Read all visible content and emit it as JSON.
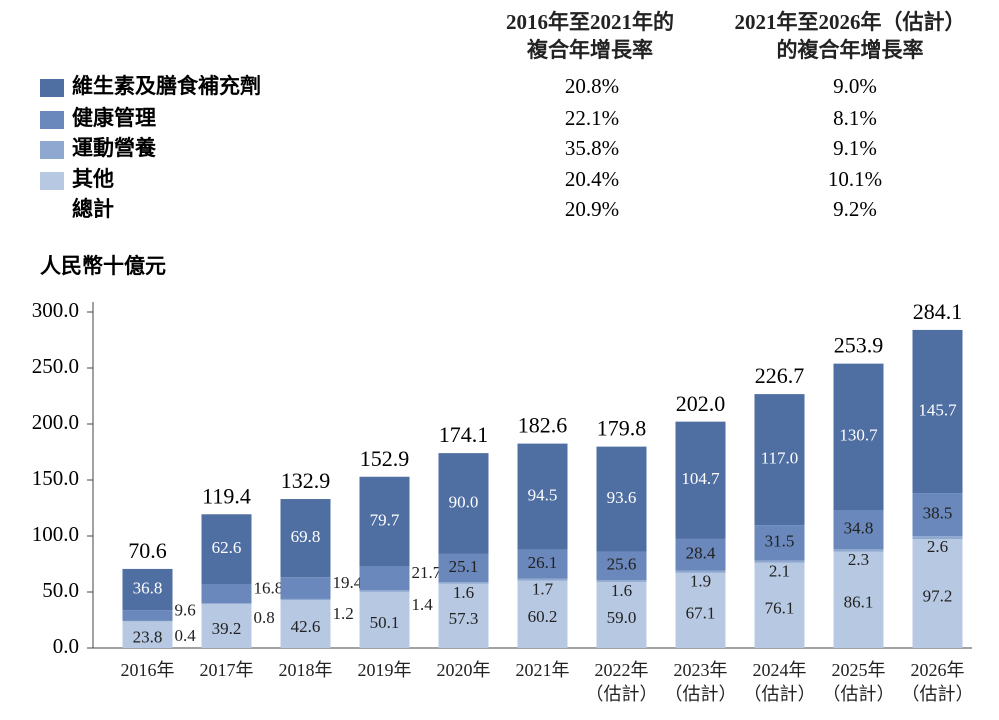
{
  "chart_data": {
    "type": "stacked_bar",
    "cagr_headers": [
      "2016年至2021年的\n複合年增長率",
      "2021年至2026年（估計）\n的複合年增長率"
    ],
    "y_label": "人民幣十億元",
    "categories": [
      "2016年",
      "2017年",
      "2018年",
      "2019年",
      "2020年",
      "2021年",
      "2022年\n（估計）",
      "2023年\n（估計）",
      "2024年\n（估計）",
      "2025年\n（估計）",
      "2026年\n（估計）"
    ],
    "series": [
      {
        "name": "維生素及膳食補充劑",
        "color": "#4f6ea2",
        "cagr": [
          "20.8%",
          "9.0%"
        ],
        "values": [
          36.8,
          62.6,
          69.8,
          79.7,
          90.0,
          94.5,
          93.6,
          104.7,
          117.0,
          130.7,
          145.7
        ],
        "value_labels": [
          "36.8",
          "62.6",
          "69.8",
          "79.7",
          "90.0",
          "94.5",
          "93.6",
          "104.7",
          "117.0",
          "130.7",
          "145.7"
        ]
      },
      {
        "name": "健康管理",
        "color": "#6a88bb",
        "cagr": [
          "22.1%",
          "8.1%"
        ],
        "values": [
          9.6,
          16.8,
          19.4,
          21.7,
          25.1,
          26.1,
          25.6,
          28.4,
          31.5,
          34.8,
          38.5
        ],
        "value_labels": [
          "9.6",
          "16.8",
          "19.4",
          "21.7",
          "25.1",
          "26.1",
          "25.6",
          "28.4",
          "31.5",
          "34.8",
          "38.5"
        ]
      },
      {
        "name": "運動營養",
        "color": "#8ea8d0",
        "cagr": [
          "35.8%",
          "9.1%"
        ],
        "values": [
          0.4,
          0.8,
          1.2,
          1.4,
          1.6,
          1.7,
          1.6,
          1.9,
          2.1,
          2.3,
          2.6
        ],
        "value_labels": [
          "0.4",
          "0.8",
          "1.2",
          "1.4",
          "1.6",
          "1.7",
          "1.6",
          "1.9",
          "2.1",
          "2.3",
          "2.6"
        ]
      },
      {
        "name": "其他",
        "color": "#b7c8e2",
        "cagr": [
          "20.4%",
          "10.1%"
        ],
        "values": [
          23.8,
          39.2,
          42.6,
          50.1,
          57.3,
          60.2,
          59.0,
          67.1,
          76.1,
          86.1,
          97.2
        ],
        "value_labels": [
          "23.8",
          "39.2",
          "42.6",
          "50.1",
          "57.3",
          "60.2",
          "59.0",
          "67.1",
          "76.1",
          "86.1",
          "97.2"
        ]
      }
    ],
    "total": {
      "name": "總計",
      "cagr": [
        "20.9%",
        "9.2%"
      ],
      "values": [
        70.6,
        119.4,
        132.9,
        152.9,
        174.1,
        182.6,
        179.8,
        202.0,
        226.7,
        253.9,
        284.1
      ],
      "value_labels": [
        "70.6",
        "119.4",
        "132.9",
        "152.9",
        "174.1",
        "182.6",
        "179.8",
        "202.0",
        "226.7",
        "253.9",
        "284.1"
      ]
    },
    "ylim": [
      0,
      300
    ],
    "yticks": [
      {
        "value": 0,
        "label": "0.0"
      },
      {
        "value": 50,
        "label": "50.0"
      },
      {
        "value": 100,
        "label": "100.0"
      },
      {
        "value": 150,
        "label": "150.0"
      },
      {
        "value": 200,
        "label": "200.0"
      },
      {
        "value": 250,
        "label": "250.0"
      },
      {
        "value": 300,
        "label": "300.0"
      }
    ]
  }
}
